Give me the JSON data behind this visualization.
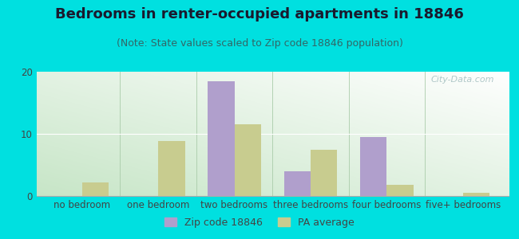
{
  "title": "Bedrooms in renter-occupied apartments in 18846",
  "subtitle": "(Note: State values scaled to Zip code 18846 population)",
  "categories": [
    "no bedroom",
    "one bedroom",
    "two bedrooms",
    "three bedrooms",
    "four bedrooms",
    "five+ bedrooms"
  ],
  "zip_values": [
    0,
    0,
    18.5,
    4.0,
    9.5,
    0
  ],
  "pa_values": [
    2.2,
    8.8,
    11.5,
    7.5,
    1.8,
    0.5
  ],
  "zip_color": "#b09fcc",
  "pa_color": "#c8cc8f",
  "background_outer": "#00e0e0",
  "ylim": [
    0,
    20
  ],
  "yticks": [
    0,
    10,
    20
  ],
  "bar_width": 0.35,
  "legend_zip_label": "Zip code 18846",
  "legend_pa_label": "PA average",
  "title_fontsize": 13,
  "subtitle_fontsize": 9,
  "tick_fontsize": 8.5,
  "watermark": "City-Data.com"
}
